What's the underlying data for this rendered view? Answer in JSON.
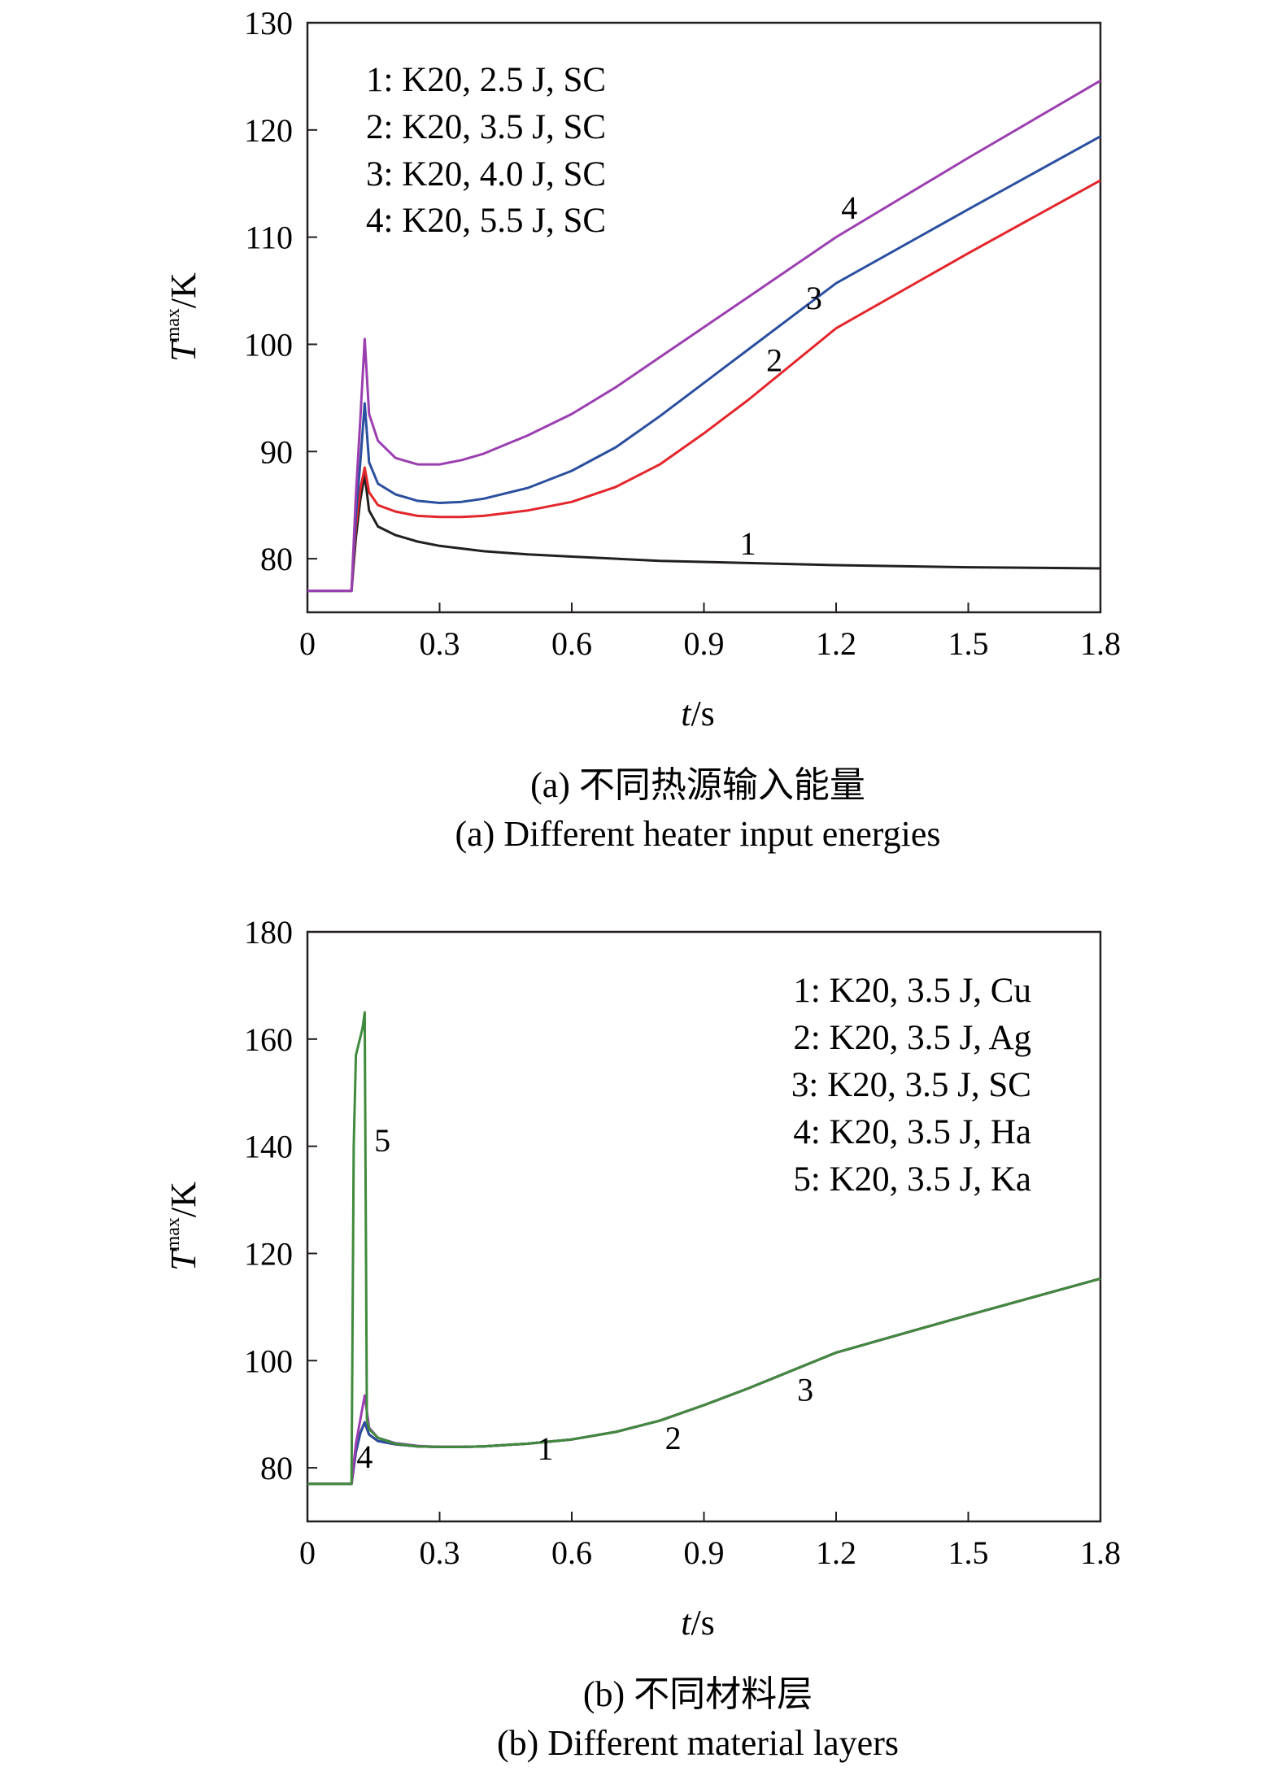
{
  "colors": {
    "black": "#231f20",
    "red": "#e3262b",
    "blue": "#2b4f9f",
    "purple": "#9b3fb0",
    "green": "#3f8a3c"
  },
  "chart_data": [
    {
      "type": "line",
      "caption_cn": "(a) 不同热源输入能量",
      "caption_en": "(a) Different heater input energies",
      "xlabel_italic": "t",
      "xlabel_unit": "/s",
      "ylabel_italic": "T",
      "ylabel_sup": "max",
      "ylabel_unit": "/K",
      "xlim": [
        0,
        1.8
      ],
      "ylim": [
        75,
        130
      ],
      "xticks": [
        "0",
        "0.3",
        "0.6",
        "0.9",
        "1.2",
        "1.5",
        "1.8"
      ],
      "yticks": [
        "80",
        "90",
        "100",
        "110",
        "120",
        "130"
      ],
      "legend": [
        "1: K20, 2.5 J, SC",
        "2: K20, 3.5 J, SC",
        "3: K20, 4.0 J, SC",
        "4: K20, 5.5 J, SC"
      ],
      "legend_position": "top-left",
      "series": [
        {
          "name": "1",
          "color": "#231f20",
          "x": [
            0,
            0.1,
            0.11,
            0.12,
            0.13,
            0.14,
            0.16,
            0.2,
            0.25,
            0.3,
            0.4,
            0.5,
            0.6,
            0.8,
            1.0,
            1.2,
            1.5,
            1.8
          ],
          "y": [
            77,
            77,
            82,
            85.5,
            87.8,
            84.5,
            83.0,
            82.2,
            81.6,
            81.2,
            80.7,
            80.4,
            80.2,
            79.8,
            79.6,
            79.4,
            79.2,
            79.1
          ]
        },
        {
          "name": "2",
          "color": "#e3262b",
          "x": [
            0,
            0.1,
            0.11,
            0.12,
            0.13,
            0.14,
            0.16,
            0.2,
            0.25,
            0.3,
            0.35,
            0.4,
            0.5,
            0.6,
            0.7,
            0.8,
            0.9,
            1.0,
            1.2,
            1.5,
            1.8
          ],
          "y": [
            77,
            77,
            83,
            86.5,
            88.5,
            86.2,
            85.0,
            84.4,
            84.0,
            83.9,
            83.9,
            84.0,
            84.5,
            85.3,
            86.7,
            88.8,
            91.7,
            94.8,
            101.5,
            108.5,
            115.3
          ]
        },
        {
          "name": "3",
          "color": "#2b4f9f",
          "x": [
            0,
            0.1,
            0.11,
            0.12,
            0.13,
            0.14,
            0.16,
            0.2,
            0.25,
            0.3,
            0.35,
            0.4,
            0.5,
            0.6,
            0.7,
            0.8,
            0.9,
            1.0,
            1.2,
            1.5,
            1.8
          ],
          "y": [
            77,
            77,
            84,
            89,
            94.5,
            89.0,
            87.0,
            86.0,
            85.4,
            85.2,
            85.3,
            85.6,
            86.6,
            88.2,
            90.4,
            93.3,
            96.4,
            99.5,
            105.7,
            112.6,
            119.4
          ]
        },
        {
          "name": "4",
          "color": "#9b3fb0",
          "x": [
            0,
            0.1,
            0.11,
            0.12,
            0.13,
            0.14,
            0.16,
            0.2,
            0.25,
            0.3,
            0.35,
            0.4,
            0.5,
            0.6,
            0.7,
            0.8,
            0.9,
            1.0,
            1.2,
            1.5,
            1.8
          ],
          "y": [
            77,
            77,
            86,
            93,
            100.5,
            93.5,
            91.0,
            89.4,
            88.8,
            88.8,
            89.2,
            89.8,
            91.5,
            93.5,
            96.0,
            98.8,
            101.6,
            104.4,
            110.0,
            117.4,
            124.6
          ]
        }
      ],
      "curve_labels": [
        {
          "text": "1",
          "x": 1.0,
          "y": 80.4
        },
        {
          "text": "2",
          "x": 1.06,
          "y": 97.5
        },
        {
          "text": "3",
          "x": 1.15,
          "y": 103.3
        },
        {
          "text": "4",
          "x": 1.23,
          "y": 111.7
        }
      ]
    },
    {
      "type": "line",
      "caption_cn": "(b) 不同材料层",
      "caption_en": "(b) Different material layers",
      "xlabel_italic": "t",
      "xlabel_unit": "/s",
      "ylabel_italic": "T",
      "ylabel_sup": "max",
      "ylabel_unit": "/K",
      "xlim": [
        0,
        1.8
      ],
      "ylim": [
        70,
        180
      ],
      "xticks": [
        "0",
        "0.3",
        "0.6",
        "0.9",
        "1.2",
        "1.5",
        "1.8"
      ],
      "yticks": [
        "80",
        "100",
        "120",
        "140",
        "160",
        "180"
      ],
      "legend": [
        "1: K20, 3.5 J, Cu",
        "2: K20, 3.5 J, Ag",
        "3: K20, 3.5 J, SC",
        "4: K20, 3.5 J, Ha",
        "5: K20, 3.5 J, Ka"
      ],
      "legend_position": "top-right",
      "series": [
        {
          "name": "1",
          "color": "#231f20",
          "x": [
            0,
            0.1,
            0.11,
            0.12,
            0.13,
            0.14,
            0.16,
            0.2,
            0.25,
            0.3,
            0.35,
            0.4,
            0.5,
            0.6,
            0.7,
            0.8,
            0.9,
            1.0,
            1.2,
            1.5,
            1.8
          ],
          "y": [
            77,
            77,
            83,
            86.5,
            88.5,
            86.2,
            85.0,
            84.4,
            84.0,
            83.9,
            83.9,
            84.0,
            84.5,
            85.3,
            86.7,
            88.8,
            91.7,
            94.8,
            101.5,
            108.5,
            115.3
          ]
        },
        {
          "name": "2",
          "color": "#e3262b",
          "x": [
            0,
            0.1,
            0.11,
            0.12,
            0.13,
            0.14,
            0.16,
            0.2,
            0.25,
            0.3,
            0.35,
            0.4,
            0.5,
            0.6,
            0.7,
            0.8,
            0.9,
            1.0,
            1.2,
            1.5,
            1.8
          ],
          "y": [
            77,
            77,
            83,
            86.5,
            88.5,
            86.2,
            85.0,
            84.4,
            84.0,
            83.9,
            83.9,
            84.0,
            84.5,
            85.3,
            86.7,
            88.8,
            91.7,
            94.8,
            101.5,
            108.5,
            115.3
          ]
        },
        {
          "name": "3",
          "color": "#2b4f9f",
          "x": [
            0,
            0.1,
            0.11,
            0.12,
            0.13,
            0.14,
            0.16,
            0.2,
            0.25,
            0.3,
            0.35,
            0.4,
            0.5,
            0.6,
            0.7,
            0.8,
            0.9,
            1.0,
            1.2,
            1.5,
            1.8
          ],
          "y": [
            77,
            77,
            83,
            86.5,
            88.5,
            86.2,
            85.0,
            84.4,
            84.0,
            83.9,
            83.9,
            84.0,
            84.5,
            85.3,
            86.7,
            88.8,
            91.7,
            94.8,
            101.5,
            108.5,
            115.3
          ]
        },
        {
          "name": "4",
          "color": "#9b3fb0",
          "x": [
            0,
            0.1,
            0.11,
            0.12,
            0.13,
            0.14,
            0.16,
            0.2,
            0.25,
            0.3,
            0.35,
            0.4,
            0.5,
            0.6,
            0.7,
            0.8,
            0.9,
            1.0,
            1.2,
            1.5,
            1.8
          ],
          "y": [
            77,
            77,
            84.5,
            89,
            93.5,
            87.5,
            85.6,
            84.6,
            84.1,
            83.9,
            83.9,
            84.0,
            84.5,
            85.3,
            86.7,
            88.8,
            91.7,
            94.8,
            101.5,
            108.5,
            115.3
          ]
        },
        {
          "name": "5",
          "color": "#3f8a3c",
          "x": [
            0,
            0.1,
            0.105,
            0.11,
            0.125,
            0.13,
            0.135,
            0.14,
            0.16,
            0.2,
            0.25,
            0.3,
            0.35,
            0.4,
            0.5,
            0.6,
            0.7,
            0.8,
            0.9,
            1.0,
            1.2,
            1.5,
            1.8
          ],
          "y": [
            77,
            77,
            140,
            157,
            162,
            165,
            89,
            87.2,
            85.6,
            84.5,
            84.0,
            83.9,
            83.9,
            84.0,
            84.5,
            85.3,
            86.7,
            88.8,
            91.7,
            94.8,
            101.5,
            108.5,
            115.3
          ]
        }
      ],
      "curve_labels": [
        {
          "text": "1",
          "x": 0.54,
          "y": 81.5
        },
        {
          "text": "2",
          "x": 0.83,
          "y": 83.5
        },
        {
          "text": "3",
          "x": 1.13,
          "y": 92.5
        },
        {
          "text": "4",
          "x": 0.13,
          "y": 80.0
        },
        {
          "text": "5",
          "x": 0.17,
          "y": 139.0
        }
      ]
    }
  ]
}
